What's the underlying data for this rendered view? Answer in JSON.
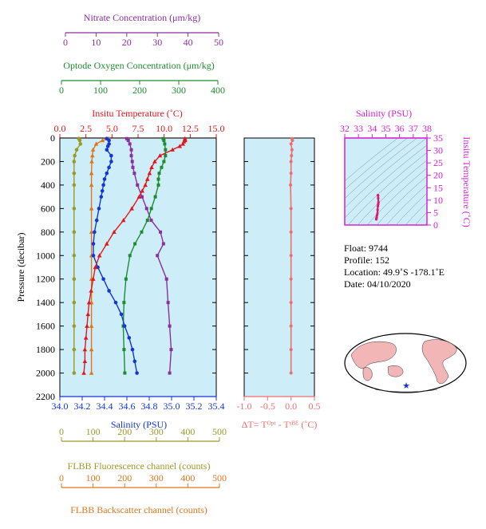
{
  "colors": {
    "nitrate": "#8b2f9e",
    "oxygen": "#1e8c2e",
    "temperature": "#e0181b",
    "salinity": "#1436d6",
    "fluorescence": "#9a9a2a",
    "backscatter": "#e0761c",
    "delta_t": "#f06d6d",
    "ts_axis": "#d81ed8",
    "ts_profile": "#e0186e",
    "plot_bg": "#cdeef8",
    "land": "#f2b6b6",
    "float_marker": "#1436d6"
  },
  "axes": {
    "nitrate": {
      "label": "Nitrate Concentration (μm/kg)",
      "ticks": [
        "0",
        "10",
        "20",
        "30",
        "40",
        "50"
      ]
    },
    "oxygen": {
      "label": "Optode Oxygen Concentration (μm/kg)",
      "ticks": [
        "0",
        "100",
        "200",
        "300",
        "400"
      ]
    },
    "temperature": {
      "label": "Insitu Temperature (˚C)",
      "ticks": [
        "0.0",
        "2.5",
        "5.0",
        "7.5",
        "10.0",
        "12.5",
        "15.0"
      ]
    },
    "pressure": {
      "label": "Pressure (decibar)",
      "ticks": [
        "0",
        "200",
        "400",
        "600",
        "800",
        "1000",
        "1200",
        "1400",
        "1600",
        "1800",
        "2000",
        "2200"
      ]
    },
    "salinity": {
      "label": "Salinity (PSU)",
      "ticks": [
        "34.0",
        "34.2",
        "34.4",
        "34.6",
        "34.8",
        "35.0",
        "35.2",
        "35.4"
      ]
    },
    "delta_t": {
      "label": "ΔT= Tᴼᵖᵗ - Tˢᴮᴱ (˚C)",
      "ticks": [
        "-1.0",
        "-0.5",
        "0.0",
        "0.5"
      ]
    },
    "fluorescence": {
      "label": "FLBB Fluorescence channel (counts)",
      "ticks": [
        "0",
        "100",
        "200",
        "300",
        "400",
        "500"
      ]
    },
    "backscatter": {
      "label": "FLBB Backscatter channel (counts)",
      "ticks": [
        "0",
        "100",
        "200",
        "300",
        "400",
        "500"
      ]
    },
    "ts_salinity": {
      "label": "Salinity (PSU)",
      "ticks": [
        "32",
        "33",
        "34",
        "35",
        "36",
        "37",
        "38"
      ]
    },
    "ts_temperature": {
      "label": "Insitu Temperature (˚C)",
      "ticks": [
        "0",
        "5",
        "10",
        "15",
        "20",
        "25",
        "30",
        "35"
      ]
    }
  },
  "info": {
    "float": "Float:  9744",
    "profile": "Profile:  152",
    "location": "Location:  49.9˚S  -178.1˚E",
    "date": "Date:  04/10/2020"
  },
  "chart_data": [
    {
      "type": "line",
      "xlabel": "Insitu Temperature (˚C)",
      "ylabel": "Pressure (decibar)",
      "xlim": [
        0,
        15
      ],
      "ylim": [
        2200,
        0
      ],
      "series": [
        {
          "key": "temperature",
          "pressure": [
            5,
            10,
            20,
            30,
            50,
            70,
            100,
            150,
            200,
            250,
            300,
            350,
            400,
            450,
            500,
            600,
            700,
            800,
            900,
            1000,
            1100,
            1200,
            1300,
            1400,
            1500,
            1600,
            1700,
            1800,
            1900,
            2000
          ],
          "values": [
            12.0,
            12.0,
            12.0,
            11.9,
            11.8,
            11.5,
            10.8,
            9.6,
            9.1,
            8.8,
            8.6,
            8.4,
            8.2,
            7.9,
            7.6,
            6.9,
            6.1,
            5.2,
            4.5,
            3.8,
            3.4,
            3.2,
            3.0,
            2.8,
            2.7,
            2.6,
            2.5,
            2.4,
            2.4,
            2.3
          ]
        },
        {
          "key": "salinity",
          "pressure": [
            5,
            20,
            50,
            70,
            100,
            150,
            200,
            250,
            300,
            350,
            400,
            450,
            500,
            600,
            700,
            800,
            900,
            1000,
            1100,
            1200,
            1300,
            1400,
            1500,
            1600,
            1700,
            1800,
            1900,
            2000
          ],
          "values": [
            34.42,
            34.44,
            34.44,
            34.43,
            34.42,
            34.46,
            34.46,
            34.44,
            34.42,
            34.4,
            34.39,
            34.38,
            34.37,
            34.35,
            34.33,
            34.31,
            34.3,
            34.3,
            34.34,
            34.39,
            34.44,
            34.5,
            34.55,
            34.58,
            34.62,
            34.65,
            34.67,
            34.69
          ]
        },
        {
          "key": "oxygen",
          "pressure": [
            5,
            20,
            50,
            100,
            150,
            200,
            250,
            300,
            350,
            400,
            500,
            600,
            700,
            800,
            900,
            1000,
            1200,
            1400,
            1600,
            1800,
            2000
          ],
          "values": [
            260,
            262,
            264,
            266,
            266,
            262,
            256,
            250,
            248,
            248,
            240,
            230,
            220,
            205,
            188,
            175,
            165,
            160,
            158,
            160,
            162
          ]
        },
        {
          "key": "nitrate",
          "pressure": [
            5,
            20,
            50,
            100,
            150,
            200,
            250,
            300,
            400,
            500,
            600,
            700,
            800,
            900,
            1000,
            1200,
            1400,
            1600,
            1800,
            2000
          ],
          "values": [
            20,
            20.5,
            21,
            21.5,
            21.5,
            21.8,
            22,
            22.5,
            23.5,
            25,
            26.5,
            28,
            31,
            32,
            30,
            33,
            33.5,
            34,
            34.5,
            34
          ]
        },
        {
          "key": "fluorescence",
          "pressure": [
            5,
            20,
            50,
            100,
            150,
            200,
            300,
            400,
            600,
            800,
            1000,
            1200,
            1400,
            1600,
            1800,
            2000
          ],
          "values": [
            55,
            58,
            60,
            48,
            42,
            40,
            40,
            40,
            40,
            40,
            40,
            40,
            40,
            40,
            40,
            40
          ]
        },
        {
          "key": "backscatter",
          "pressure": [
            5,
            20,
            50,
            100,
            150,
            200,
            300,
            400,
            600,
            800,
            1000,
            1200,
            1400,
            1600,
            1800,
            2000
          ],
          "values": [
            150,
            130,
            110,
            100,
            98,
            96,
            95,
            95,
            95,
            95,
            95,
            95,
            95,
            95,
            95,
            95
          ]
        }
      ]
    },
    {
      "type": "line",
      "xlabel": "ΔT= Tᴼᵖᵗ - Tˢᴮᴱ (˚C)",
      "ylabel": "Pressure (decibar)",
      "xlim": [
        -1.0,
        0.5
      ],
      "ylim": [
        2200,
        0
      ],
      "series": [
        {
          "key": "delta_t",
          "pressure": [
            5,
            20,
            50,
            100,
            150,
            200,
            300,
            400,
            600,
            800,
            1000,
            1200,
            1400,
            1600,
            1800,
            2000
          ],
          "values": [
            0.02,
            0.03,
            0.0,
            0.02,
            0.01,
            0.0,
            0.0,
            -0.01,
            0.0,
            0.0,
            0.0,
            0.0,
            0.0,
            0.0,
            0.0,
            0.0
          ]
        }
      ]
    },
    {
      "type": "scatter",
      "xlabel": "Salinity (PSU)",
      "ylabel": "Insitu Temperature (˚C)",
      "xlim": [
        32,
        38
      ],
      "ylim": [
        0,
        35
      ],
      "series": [
        {
          "key": "ts_profile",
          "x": [
            34.3,
            34.31,
            34.33,
            34.35,
            34.38,
            34.4,
            34.42,
            34.44,
            34.46,
            34.44,
            34.43,
            34.42
          ],
          "y": [
            2.3,
            2.6,
            3.0,
            3.8,
            4.5,
            6.1,
            7.6,
            8.4,
            9.1,
            10.8,
            11.9,
            12.0
          ]
        }
      ]
    }
  ]
}
